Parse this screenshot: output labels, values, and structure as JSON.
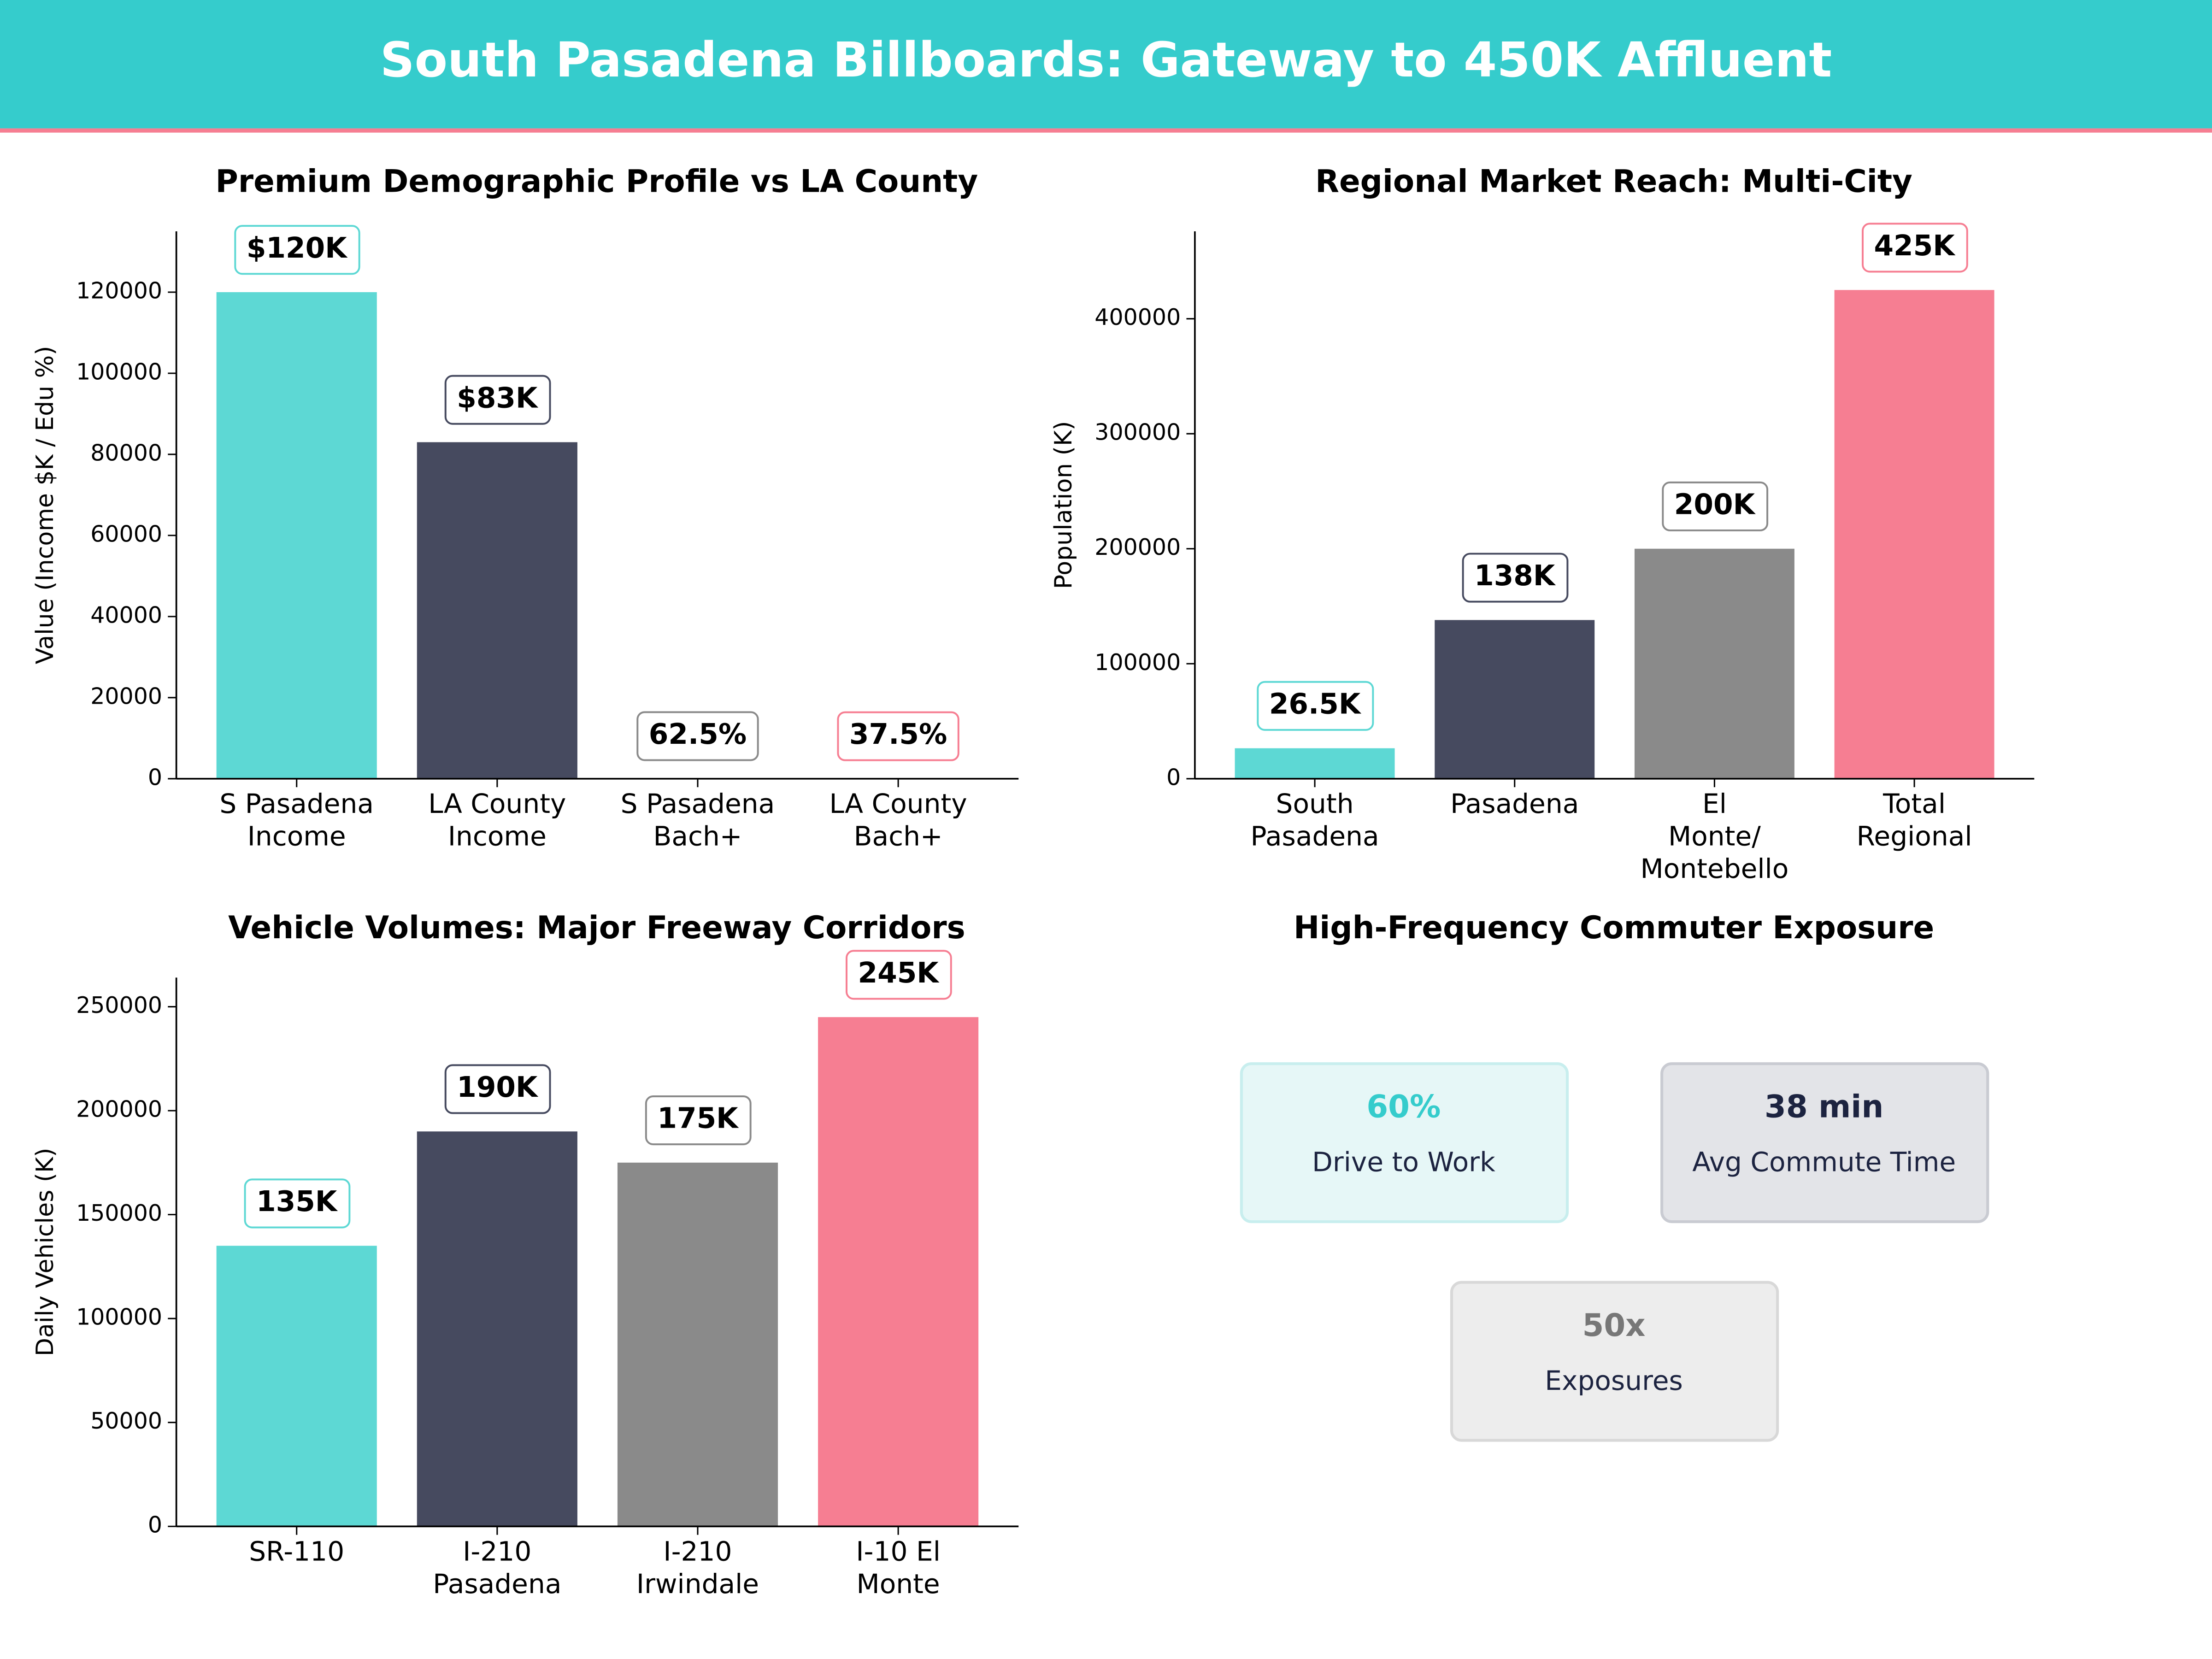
{
  "title": "South Pasadena Billboards: Gateway to 450K Affluent",
  "chart_data": [
    {
      "type": "bar",
      "title": "Premium Demographic Profile vs LA County",
      "ylabel": "Value (Income $K / Edu %)",
      "categories": [
        "S Pasadena\nIncome",
        "LA County\nIncome",
        "S Pasadena\nBach+",
        "LA County\nBach+"
      ],
      "values": [
        120000,
        83000,
        62.5,
        37.5
      ],
      "value_labels": [
        "$120K",
        "$83K",
        "62.5%",
        "37.5%"
      ],
      "colors": [
        "#5dd8d4",
        "#464a5f",
        "#8a8a8a",
        "#f67e92"
      ],
      "ylim": [
        0,
        135000
      ],
      "yticks": [
        0,
        20000,
        40000,
        60000,
        80000,
        100000,
        120000
      ]
    },
    {
      "type": "bar",
      "title": "Regional Market Reach: Multi-City",
      "ylabel": "Population (K)",
      "categories": [
        "South\nPasadena",
        "Pasadena",
        "El\nMonte/\nMontebello",
        "Total\nRegional"
      ],
      "values": [
        26500,
        138000,
        200000,
        425000
      ],
      "value_labels": [
        "26.5K",
        "138K",
        "200K",
        "425K"
      ],
      "colors": [
        "#5dd8d4",
        "#464a5f",
        "#8a8a8a",
        "#f67e92"
      ],
      "ylim": [
        0,
        476000
      ],
      "yticks": [
        0,
        100000,
        200000,
        300000,
        400000
      ]
    },
    {
      "type": "bar",
      "title": "Vehicle Volumes: Major Freeway Corridors",
      "ylabel": "Daily Vehicles (K)",
      "categories": [
        "SR-110",
        "I-210\nPasadena",
        "I-210\nIrwindale",
        "I-10 El\nMonte"
      ],
      "values": [
        135000,
        190000,
        175000,
        245000
      ],
      "value_labels": [
        "135K",
        "190K",
        "175K",
        "245K"
      ],
      "colors": [
        "#5dd8d4",
        "#464a5f",
        "#8a8a8a",
        "#f67e92"
      ],
      "ylim": [
        0,
        264000
      ],
      "yticks": [
        0,
        50000,
        100000,
        150000,
        200000,
        250000
      ]
    },
    {
      "type": "cards",
      "title": "High-Frequency Commuter Exposure",
      "cards": [
        {
          "value": "60%",
          "label": "Drive to Work",
          "color": "#35cccc",
          "background": "#e6f7f7",
          "border": "#c8eeee"
        },
        {
          "value": "38 min",
          "label": "Avg Commute Time",
          "color": "#1c2340",
          "background": "#e3e4e8",
          "border": "#c9cbd2"
        },
        {
          "value": "50x",
          "label": "Exposures",
          "color": "#777777",
          "background": "#ededed",
          "border": "#d8d8d8"
        }
      ]
    }
  ]
}
